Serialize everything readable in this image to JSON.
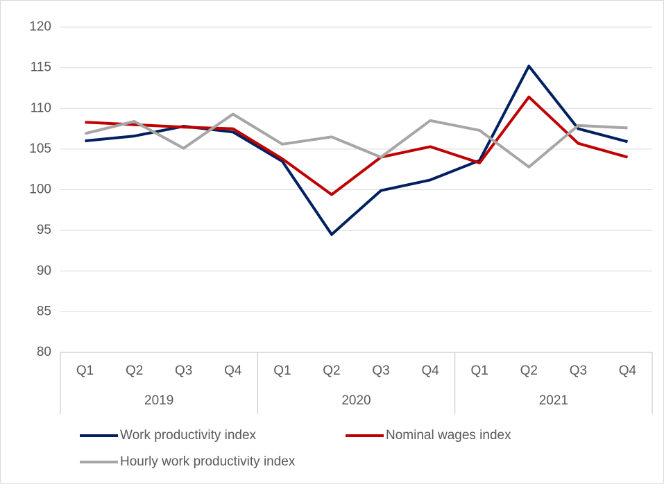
{
  "chart_data": {
    "type": "line",
    "categories": [
      "Q1",
      "Q2",
      "Q3",
      "Q4",
      "Q1",
      "Q2",
      "Q3",
      "Q4",
      "Q1",
      "Q2",
      "Q3",
      "Q4"
    ],
    "category_groups": [
      "2019",
      "2020",
      "2021"
    ],
    "series": [
      {
        "name": "Work productivity index",
        "color": "#002060",
        "values": [
          106.0,
          106.6,
          107.8,
          107.1,
          103.5,
          94.5,
          99.9,
          101.2,
          103.6,
          115.2,
          107.5,
          105.9
        ]
      },
      {
        "name": "Nominal wages index",
        "color": "#c00000",
        "values": [
          108.3,
          108.0,
          107.7,
          107.5,
          103.8,
          99.4,
          104.0,
          105.3,
          103.3,
          111.4,
          105.7,
          104.0
        ]
      },
      {
        "name": "Hourly work productivity index",
        "color": "#a6a6a6",
        "values": [
          106.9,
          108.4,
          105.1,
          109.3,
          105.6,
          106.5,
          104.0,
          108.5,
          107.3,
          102.8,
          107.9,
          107.6
        ]
      }
    ],
    "ylim": [
      80,
      120
    ],
    "yticks": [
      80,
      85,
      90,
      95,
      100,
      105,
      110,
      115,
      120
    ],
    "grid": true
  }
}
